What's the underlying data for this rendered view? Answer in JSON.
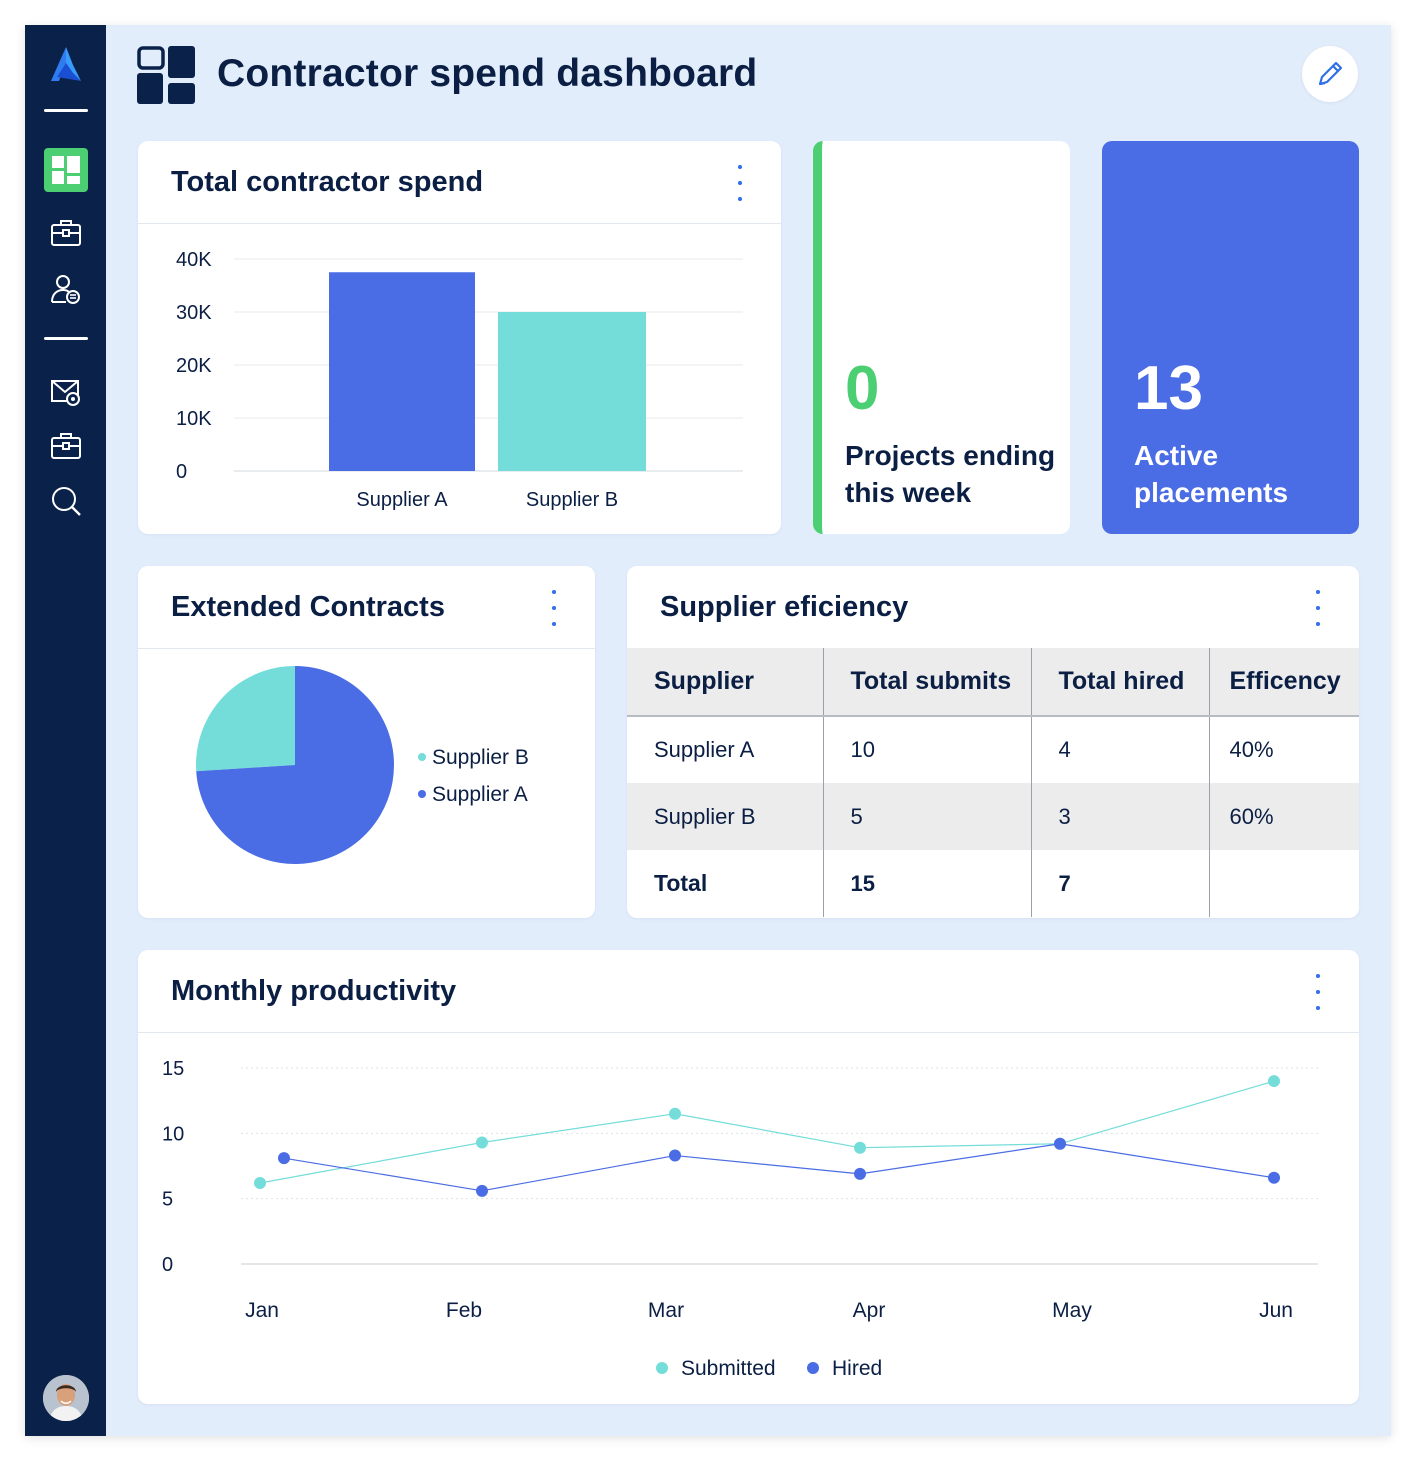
{
  "header": {
    "title": "Contractor spend dashboard"
  },
  "sidebar": {
    "icons": [
      "logo-icon",
      "dashboard-icon",
      "briefcase-icon",
      "user-list-icon",
      "mail-settings-icon",
      "briefcase-icon",
      "search-icon"
    ],
    "active_color": "#4ccf72",
    "background": "#0a2249"
  },
  "spend_card": {
    "title": "Total contractor spend",
    "chart_data": {
      "type": "bar",
      "title": "Total contractor spend",
      "categories": [
        "Supplier A",
        "Supplier B"
      ],
      "values": [
        37500,
        30000
      ],
      "colors": [
        "#4a6ce4",
        "#74ddd9"
      ],
      "ylim": [
        0,
        40000
      ],
      "yticks": [
        "0",
        "10K",
        "20K",
        "30K",
        "40K"
      ],
      "grid": true
    }
  },
  "projects_card": {
    "value": "0",
    "label": "Projects ending this week",
    "accent": "#4ccf72"
  },
  "placements_card": {
    "value": "13",
    "label": "Active placements",
    "background": "#4a6ce4"
  },
  "contracts_card": {
    "title": "Extended Contracts",
    "chart_data": {
      "type": "pie",
      "title": "Extended Contracts",
      "slices": [
        {
          "name": "Supplier B",
          "value": 26,
          "color": "#74ddd9"
        },
        {
          "name": "Supplier A",
          "value": 74,
          "color": "#4a6ce4"
        }
      ],
      "legend": "right"
    }
  },
  "efficiency_card": {
    "title": "Supplier eficiency",
    "columns": [
      "Supplier",
      "Total submits",
      "Total hired",
      "Efficency"
    ],
    "rows": [
      [
        "Supplier A",
        "10",
        "4",
        "40%"
      ],
      [
        "Supplier B",
        "5",
        "3",
        "60%"
      ],
      [
        "Total",
        "15",
        "7",
        ""
      ]
    ]
  },
  "productivity_card": {
    "title": "Monthly productivity",
    "chart_data": {
      "type": "line",
      "title": "Monthly productivity",
      "categories": [
        "Jan",
        "Feb",
        "Mar",
        "Apr",
        "May",
        "Jun"
      ],
      "series": [
        {
          "name": "Submitted",
          "values": [
            6.2,
            9.3,
            11.5,
            8.9,
            9.2,
            14
          ],
          "color": "#74ddd9"
        },
        {
          "name": "Hired",
          "values": [
            8.1,
            5.6,
            8.3,
            6.9,
            9.2,
            6.6
          ],
          "color": "#4a6ce4"
        }
      ],
      "ylim": [
        0,
        15
      ],
      "yticks": [
        "0",
        "5",
        "10",
        "15"
      ],
      "legend": "bottom",
      "grid": true
    }
  }
}
